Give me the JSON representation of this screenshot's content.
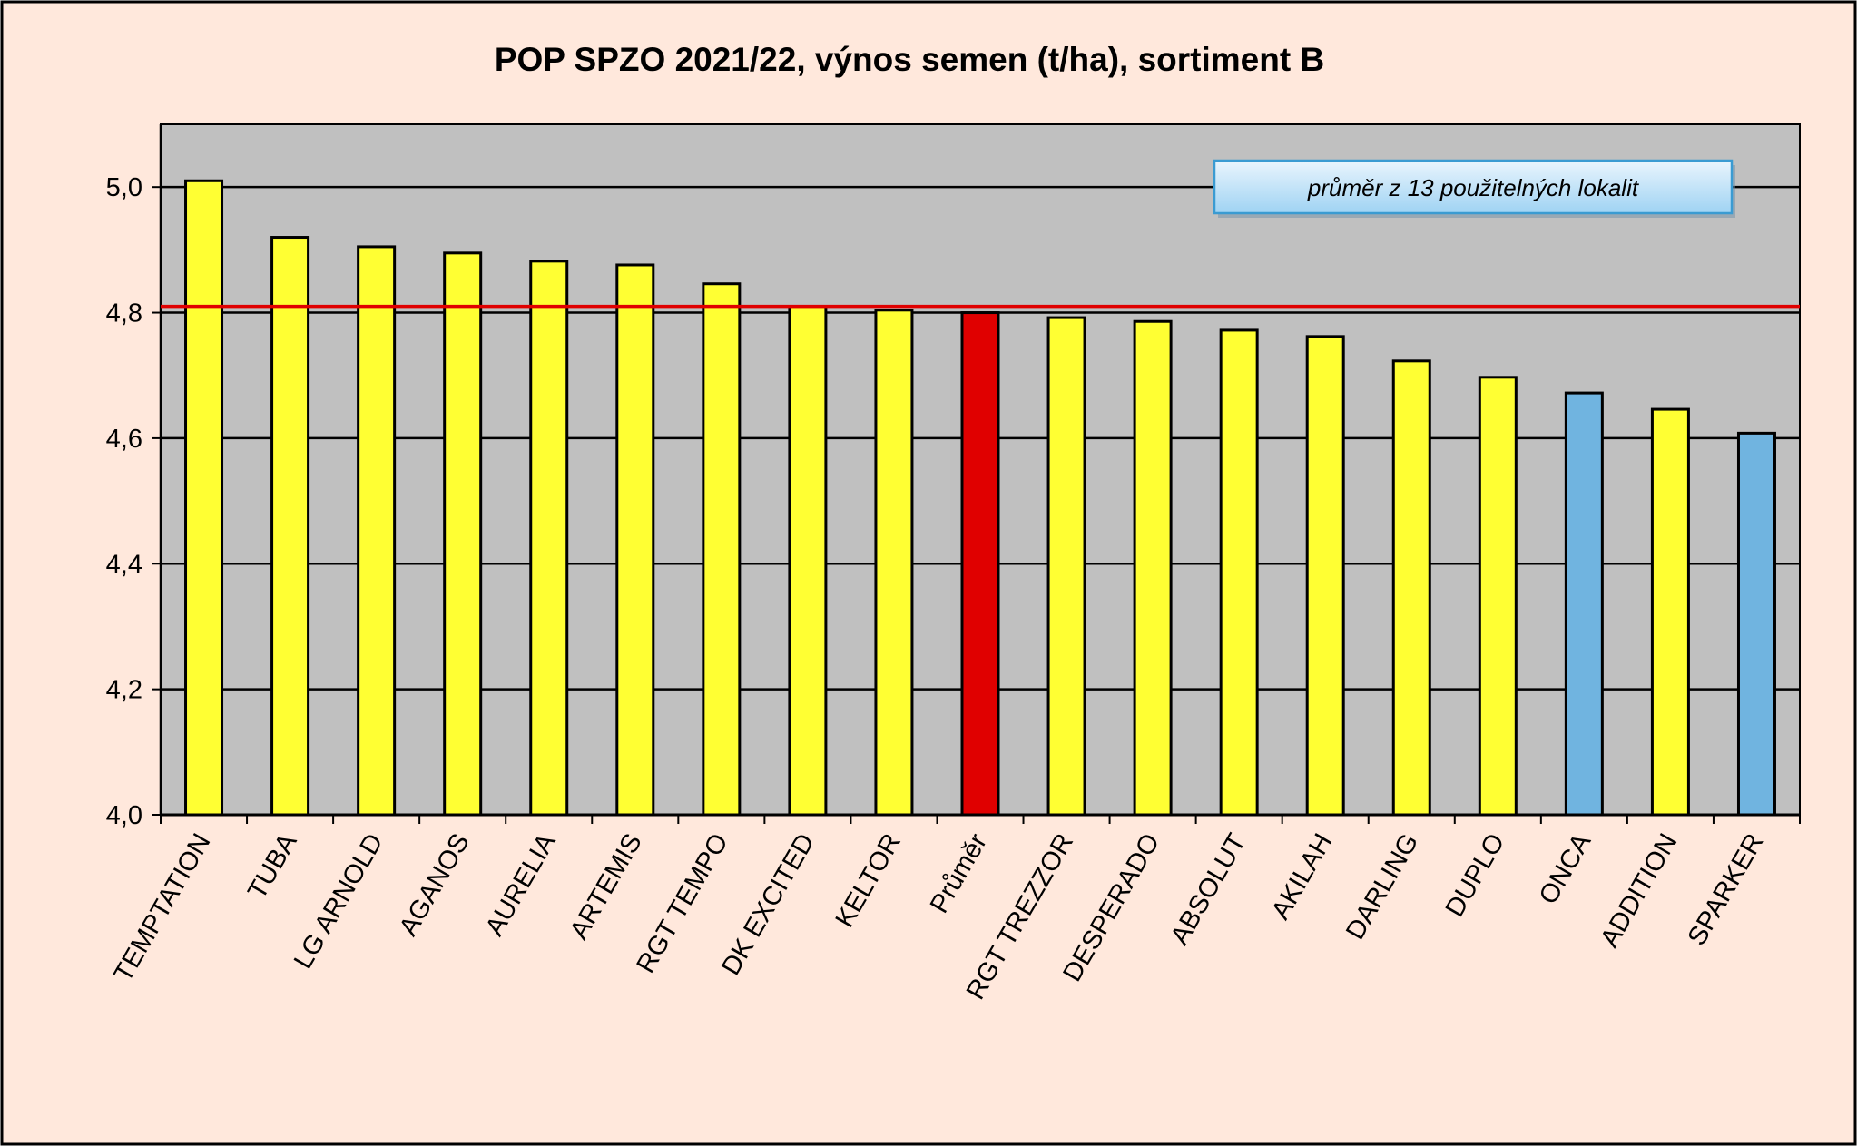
{
  "chart_data": {
    "type": "bar",
    "title": "POP SPZO 2021/22, výnos semen (t/ha), sortiment B",
    "xlabel": "",
    "ylabel": "",
    "ylim": [
      4.0,
      5.1
    ],
    "y_ticks": [
      "4,0",
      "4,2",
      "4,4",
      "4,6",
      "4,8",
      "5,0"
    ],
    "y_tick_values": [
      4.0,
      4.2,
      4.4,
      4.6,
      4.8,
      5.0
    ],
    "grid": true,
    "reference_line": 4.81,
    "annotation": "průměr z 13 použitelných lokalit",
    "categories": [
      "TEMPTATION",
      "TUBA",
      "LG ARNOLD",
      "AGANOS",
      "AURELIA",
      "ARTEMIS",
      "RGT TEMPO",
      "DK EXCITED",
      "KELTOR",
      "Průměr",
      "RGT TREZZOR",
      "DESPERADO",
      "ABSOLUT",
      "AKILAH",
      "DARLING",
      "DUPLO",
      "ONCA",
      "ADDITION",
      "SPARKER"
    ],
    "values": [
      5.01,
      4.92,
      4.905,
      4.895,
      4.882,
      4.876,
      4.846,
      4.81,
      4.804,
      4.8,
      4.792,
      4.786,
      4.772,
      4.762,
      4.723,
      4.697,
      4.672,
      4.646,
      4.608
    ],
    "bar_colors": [
      "#ffff33",
      "#ffff33",
      "#ffff33",
      "#ffff33",
      "#ffff33",
      "#ffff33",
      "#ffff33",
      "#ffff33",
      "#ffff33",
      "#e00000",
      "#ffff33",
      "#ffff33",
      "#ffff33",
      "#ffff33",
      "#ffff33",
      "#ffff33",
      "#70b4e0",
      "#ffff33",
      "#70b4e0"
    ],
    "colors": {
      "background": "#ffe8dc",
      "plot_area": "#c0c0c0",
      "reference_line": "#e00000",
      "grid": "#000000"
    }
  }
}
